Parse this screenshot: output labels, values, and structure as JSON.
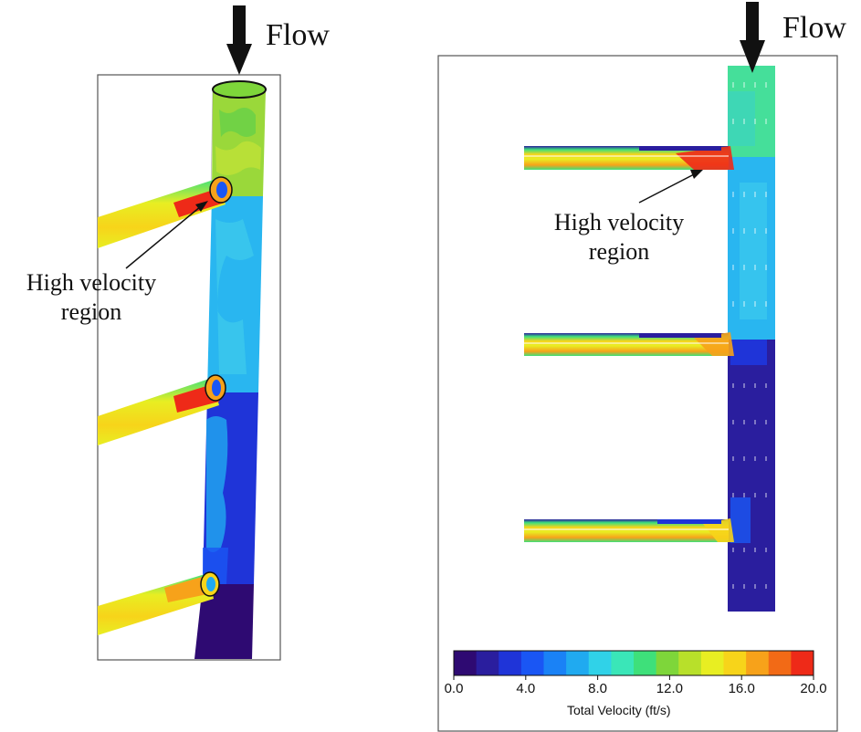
{
  "left_panel": {
    "flow_label": "Flow",
    "annotation_line1": "High velocity",
    "annotation_line2": "region"
  },
  "right_panel": {
    "flow_label": "Flow",
    "annotation_line1": "High velocity",
    "annotation_line2": "region"
  },
  "colorbar": {
    "title": "Total Velocity (ft/s)",
    "min": 0.0,
    "max": 20.0,
    "ticks": [
      "0.0",
      "4.0",
      "8.0",
      "12.0",
      "16.0",
      "20.0"
    ],
    "bins": 16,
    "colors": [
      "#2e0a72",
      "#2a1e9e",
      "#1f34d8",
      "#1a56f4",
      "#1a82f6",
      "#20aaf0",
      "#30d2e8",
      "#3ae6b8",
      "#3ee07a",
      "#7ed63a",
      "#b8e02a",
      "#e8ee22",
      "#f7d41a",
      "#f7a21a",
      "#f26a16",
      "#ee2a18"
    ]
  },
  "colors": {
    "low": "#2e0a72",
    "mid_low": "#29b6f0",
    "mid": "#45df9a",
    "high_mid": "#e6ee22",
    "high": "#ee2a18"
  }
}
